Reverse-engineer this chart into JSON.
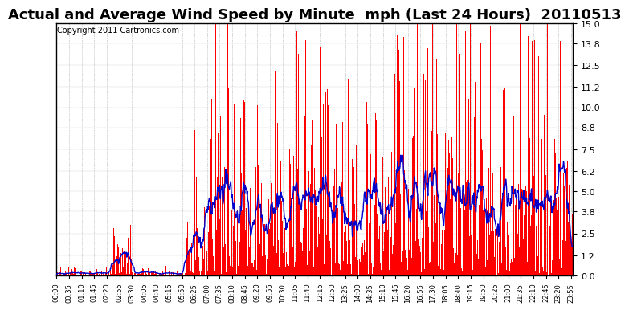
{
  "title": "Actual and Average Wind Speed by Minute  mph (Last 24 Hours)  20110513",
  "copyright": "Copyright 2011 Cartronics.com",
  "yticks": [
    0.0,
    1.2,
    2.5,
    3.8,
    5.0,
    6.2,
    7.5,
    8.8,
    10.0,
    11.2,
    12.5,
    13.8,
    15.0
  ],
  "ymax": 15.0,
  "ymin": 0.0,
  "bar_color": "#FF0000",
  "line_color": "#0000CC",
  "background_color": "#FFFFFF",
  "grid_color": "#AAAAAA",
  "title_fontsize": 13,
  "copyright_fontsize": 7,
  "xtick_fontsize": 6,
  "ytick_fontsize": 8,
  "n_minutes": 1440
}
